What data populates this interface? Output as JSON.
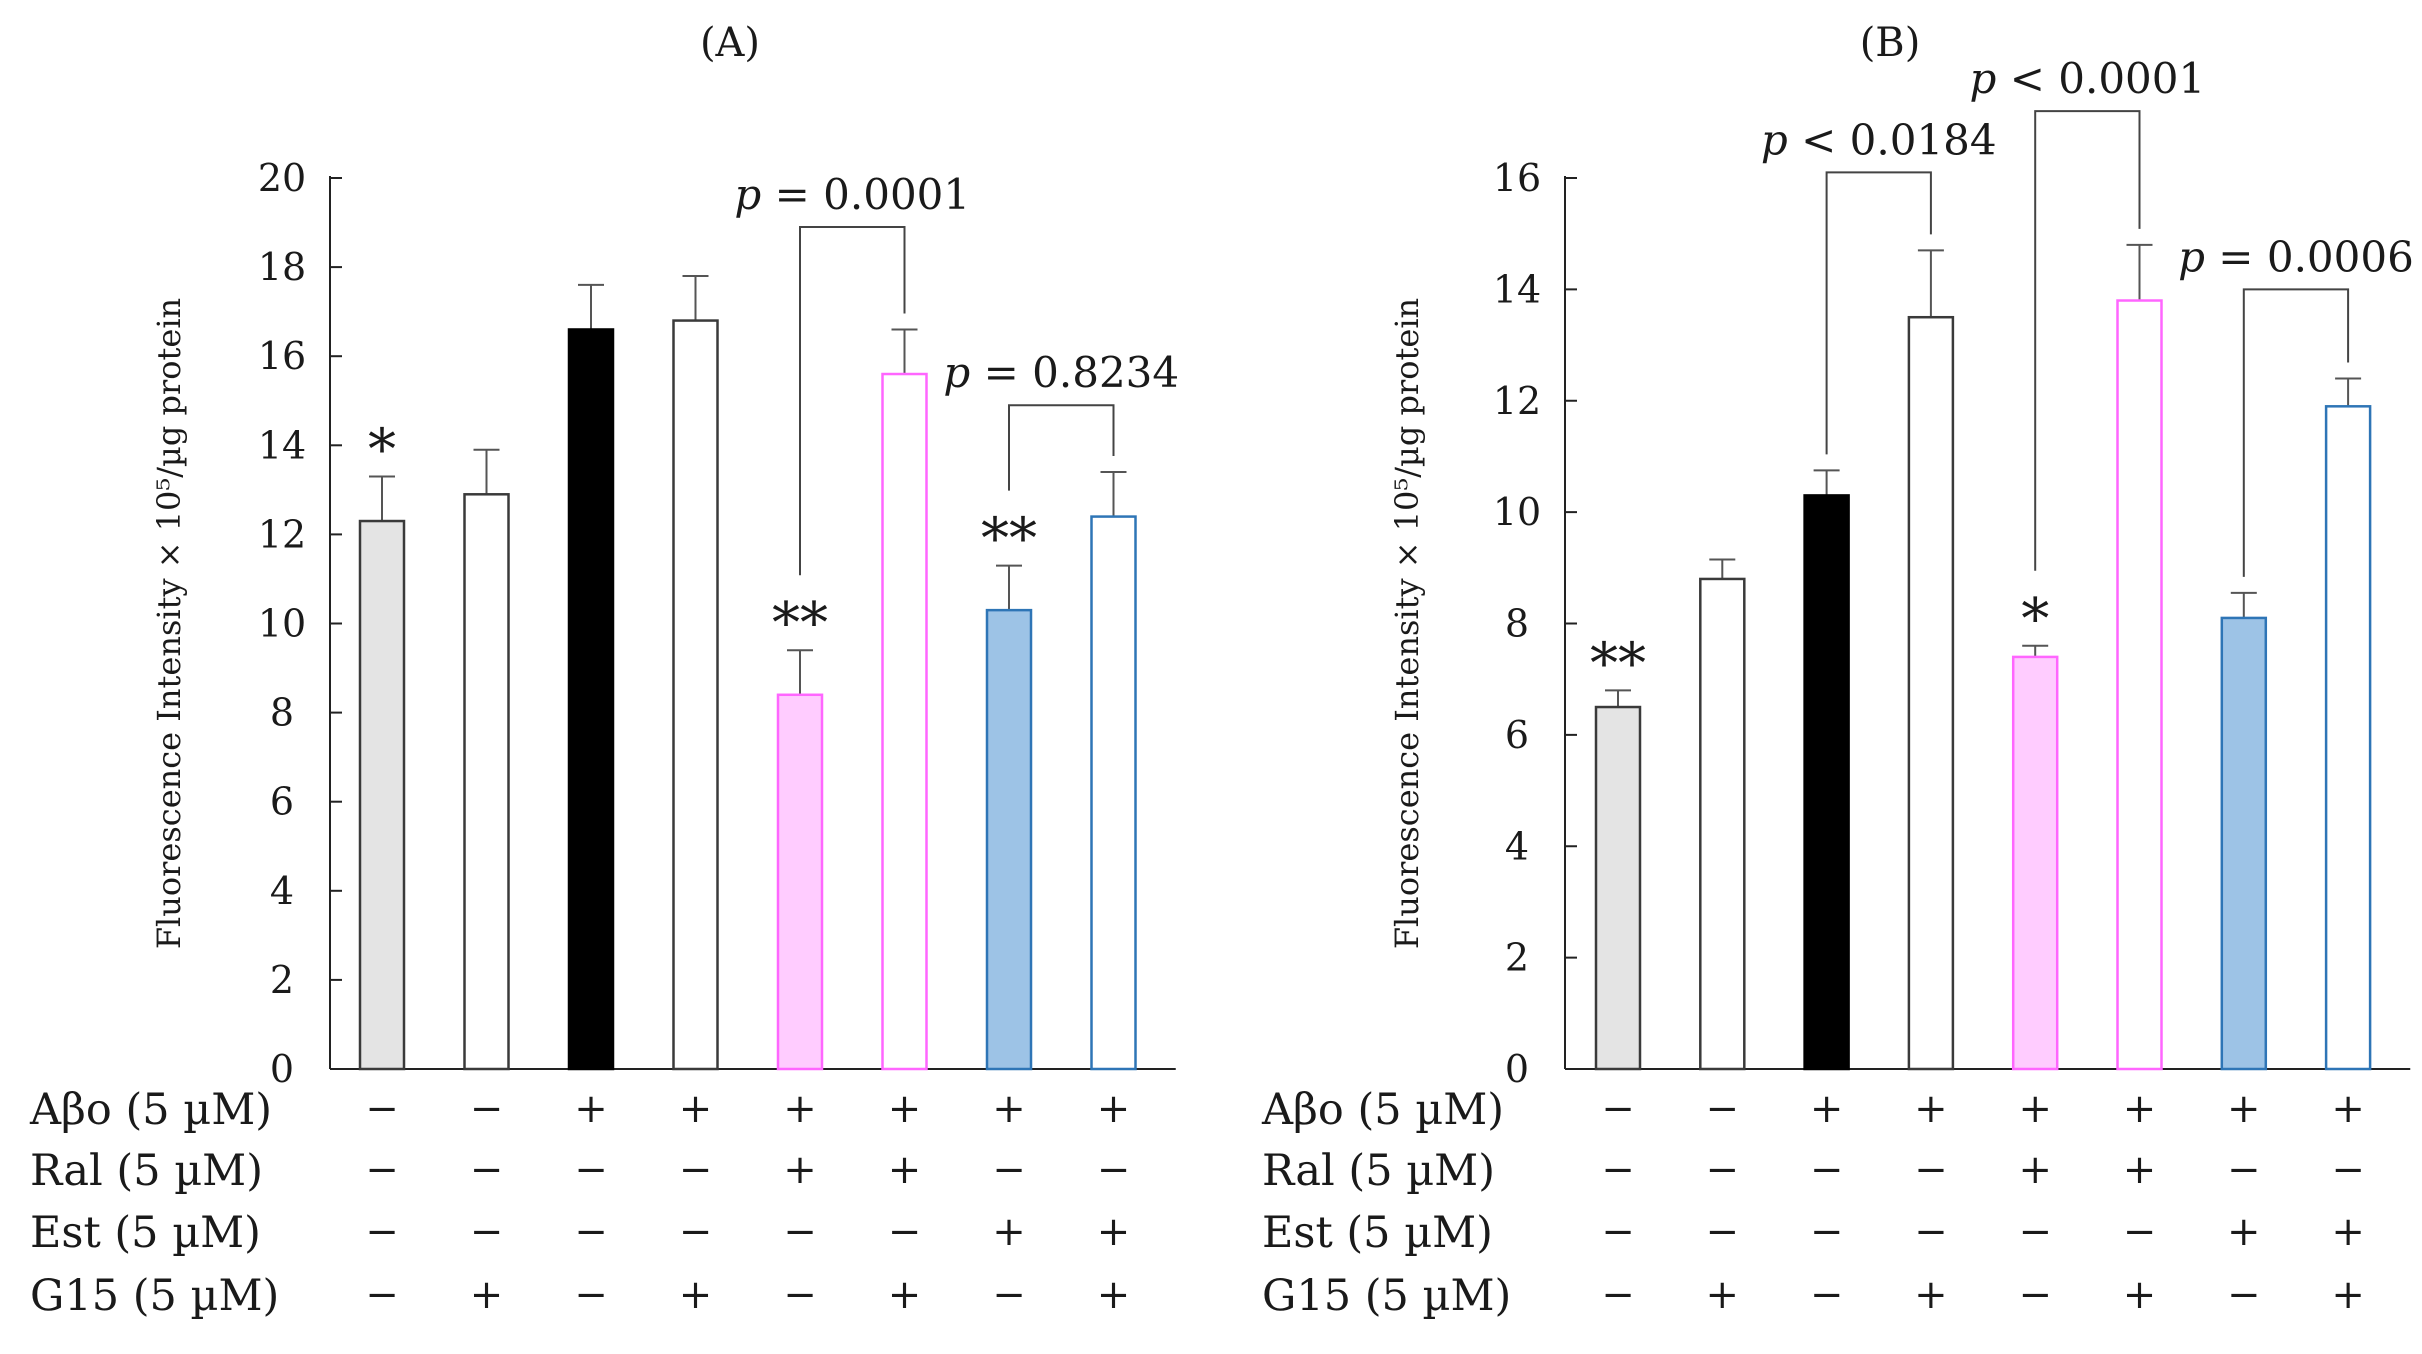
{
  "chart_data": [
    {
      "type": "bar",
      "title": "(A)",
      "ylabel": "Fluorescence Intensity × 10⁵/µg protein",
      "ylim": [
        0,
        20
      ],
      "yticks": [
        0,
        2,
        4,
        6,
        8,
        10,
        12,
        14,
        16,
        18,
        20
      ],
      "values": [
        12.3,
        12.9,
        16.6,
        16.8,
        8.4,
        15.6,
        10.3,
        12.4
      ],
      "errors": [
        1.0,
        1.0,
        1.0,
        1.0,
        1.0,
        1.0,
        1.0,
        1.0
      ],
      "fills": [
        "#e4e4e4",
        "#ffffff",
        "#000000",
        "#ffffff",
        "#ffccff",
        "#ffffff",
        "#9dc3e6",
        "#ffffff"
      ],
      "strokes": [
        "#3a3a3a",
        "#3a3a3a",
        "#000000",
        "#3a3a3a",
        "#ff66ff",
        "#ff66ff",
        "#2e75b6",
        "#2e75b6"
      ],
      "stars": [
        "*",
        "",
        "",
        "",
        "**",
        "",
        "**",
        ""
      ],
      "brackets": [
        {
          "from": 4,
          "to": 5,
          "label_italic": "p",
          "label_rest": " = 0.0001",
          "top": 18.9
        },
        {
          "from": 6,
          "to": 7,
          "label_italic": "p",
          "label_rest": " = 0.8234",
          "top": 14.9
        }
      ]
    },
    {
      "type": "bar",
      "title": "(B)",
      "ylabel": "Fluorescence Intensity × 10⁵/µg protein",
      "ylim": [
        0,
        16
      ],
      "yticks": [
        0,
        2,
        4,
        6,
        8,
        10,
        12,
        14,
        16
      ],
      "values": [
        6.5,
        8.8,
        10.3,
        13.5,
        7.4,
        13.8,
        8.1,
        11.9
      ],
      "errors": [
        0.3,
        0.35,
        0.45,
        1.2,
        0.2,
        1.0,
        0.45,
        0.5
      ],
      "fills": [
        "#e4e4e4",
        "#ffffff",
        "#000000",
        "#ffffff",
        "#ffccff",
        "#ffffff",
        "#9dc3e6",
        "#ffffff"
      ],
      "strokes": [
        "#3a3a3a",
        "#3a3a3a",
        "#000000",
        "#3a3a3a",
        "#ff66ff",
        "#ff66ff",
        "#2e75b6",
        "#2e75b6"
      ],
      "stars": [
        "**",
        "",
        "",
        "",
        "*",
        "",
        "",
        ""
      ],
      "brackets": [
        {
          "from": 2,
          "to": 3,
          "label_italic": "p",
          "label_rest": " < 0.0184",
          "top": 16.1
        },
        {
          "from": 4,
          "to": 5,
          "label_italic": "p",
          "label_rest": " < 0.0001",
          "top": 17.2
        },
        {
          "from": 6,
          "to": 7,
          "label_italic": "p",
          "label_rest": " = 0.0006",
          "top": 14.0
        }
      ]
    }
  ],
  "conditions": [
    {
      "name": "Aβo (5 µM)",
      "signs": [
        "−",
        "−",
        "+",
        "+",
        "+",
        "+",
        "+",
        "+"
      ]
    },
    {
      "name": "Ral  (5 µM)",
      "signs": [
        "−",
        "−",
        "−",
        "−",
        "+",
        "+",
        "−",
        "−"
      ]
    },
    {
      "name": "Est  (5 µM)",
      "signs": [
        "−",
        "−",
        "−",
        "−",
        "−",
        "−",
        "+",
        "+"
      ]
    },
    {
      "name": "G15 (5 µM)",
      "signs": [
        "−",
        "+",
        "−",
        "+",
        "−",
        "+",
        "−",
        "+"
      ]
    }
  ]
}
